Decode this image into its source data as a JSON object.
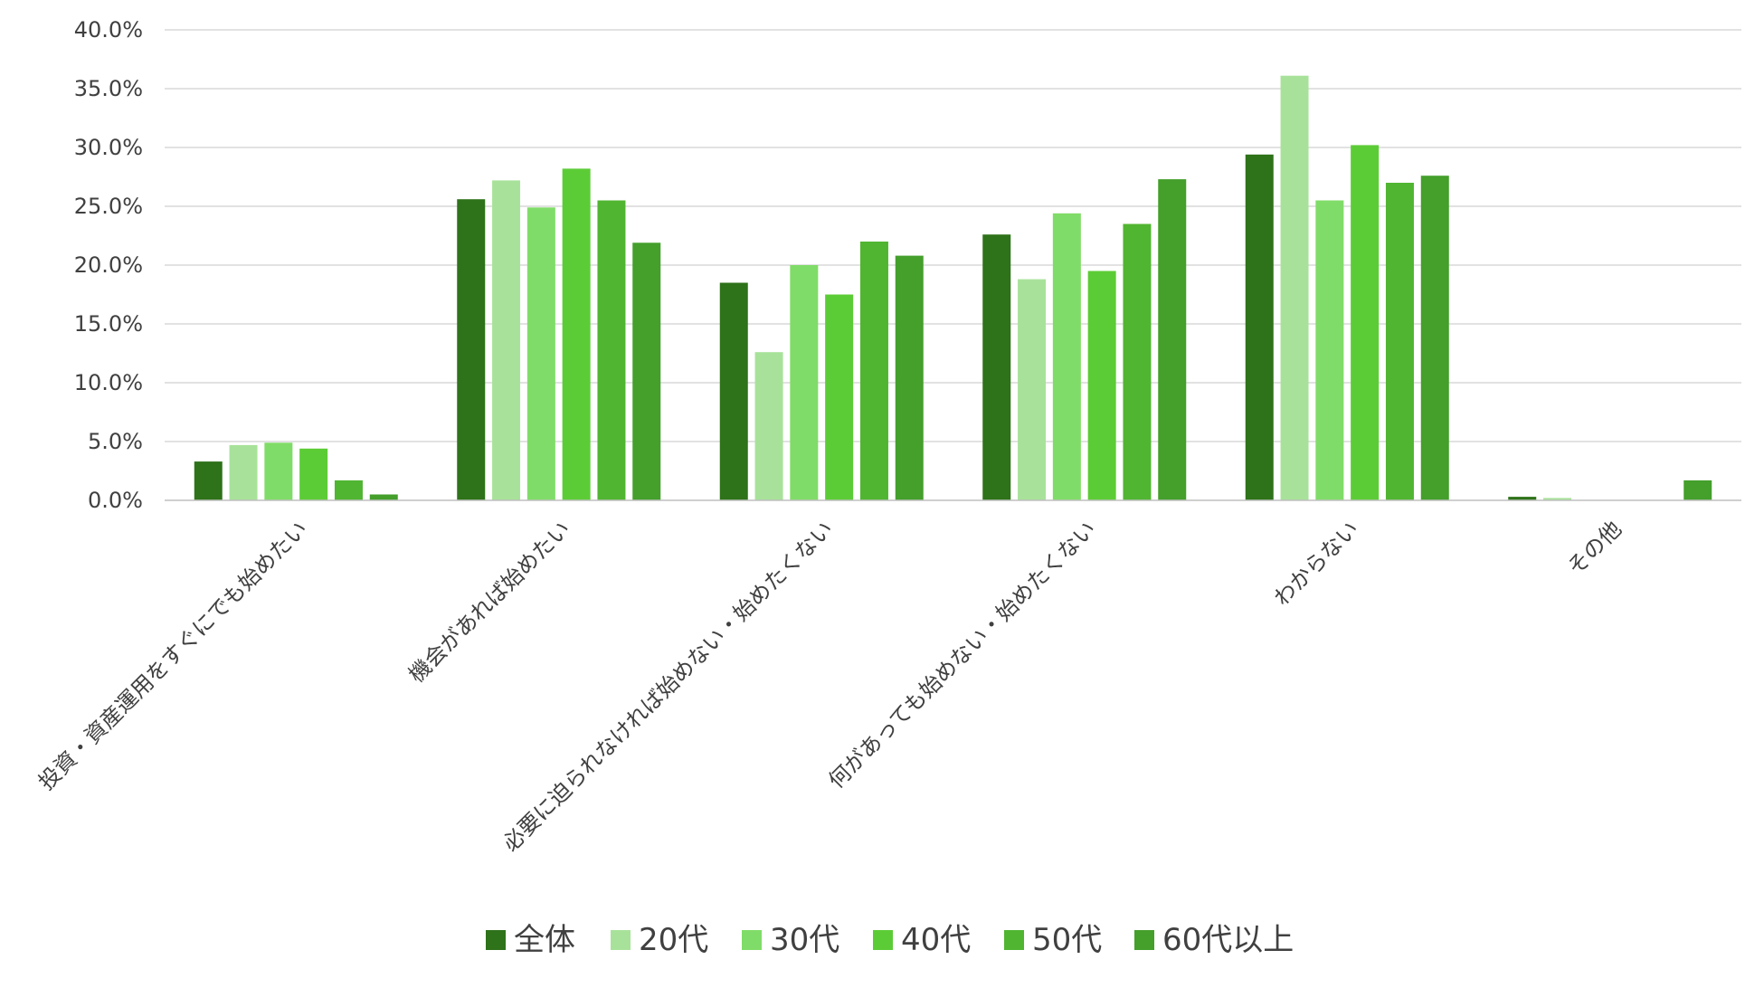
{
  "chart_data": {
    "type": "bar",
    "title": "",
    "xlabel": "",
    "ylabel": "",
    "ylim": [
      0,
      40
    ],
    "y_ticks": [
      "0.0%",
      "5.0%",
      "10.0%",
      "15.0%",
      "20.0%",
      "25.0%",
      "30.0%",
      "35.0%",
      "40.0%"
    ],
    "grid": true,
    "legend_position": "bottom",
    "categories": [
      "投資・資産運用をすぐにでも始めたい",
      "機会があれば始めたい",
      "必要に迫られなければ始めない・始めたくない",
      "何があっても始めない・始めたくない",
      "わからない",
      "その他"
    ],
    "series": [
      {
        "name": "全体",
        "color": "#2e7219",
        "values": [
          3.3,
          25.6,
          18.5,
          22.6,
          29.4,
          0.3
        ]
      },
      {
        "name": "20代",
        "color": "#a8e29a",
        "values": [
          4.7,
          27.2,
          12.6,
          18.8,
          36.1,
          0.2
        ]
      },
      {
        "name": "30代",
        "color": "#80dc68",
        "values": [
          4.9,
          24.9,
          20.0,
          24.4,
          25.5,
          0.0
        ]
      },
      {
        "name": "40代",
        "color": "#5ccc36",
        "values": [
          4.4,
          28.2,
          17.5,
          19.5,
          30.2,
          0.0
        ]
      },
      {
        "name": "50代",
        "color": "#50b531",
        "values": [
          1.7,
          25.5,
          22.0,
          23.5,
          27.0,
          0.0
        ]
      },
      {
        "name": "60代以上",
        "color": "#449f2b",
        "values": [
          0.5,
          21.9,
          20.8,
          27.3,
          27.6,
          1.7
        ]
      }
    ]
  }
}
